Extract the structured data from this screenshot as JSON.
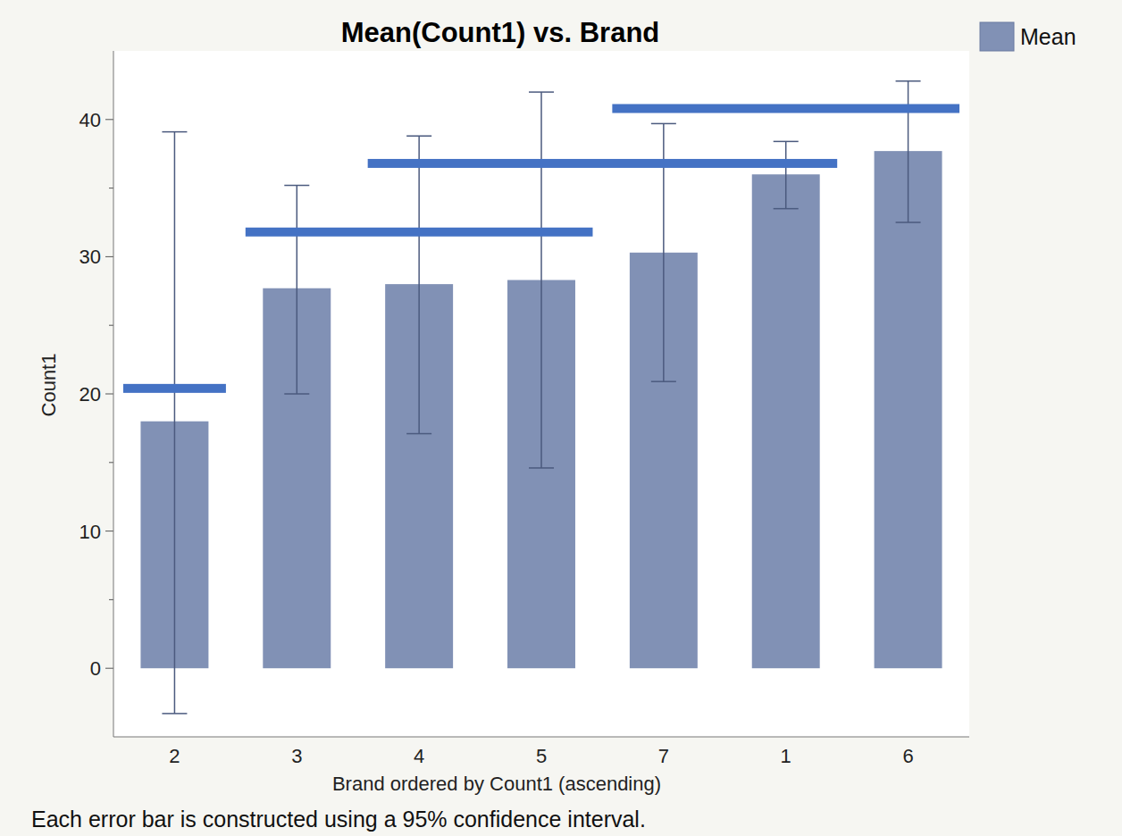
{
  "chart_data": {
    "type": "bar",
    "title": "Mean(Count1) vs. Brand",
    "x_label": "Brand ordered by Count1 (ascending)",
    "y_label": "Count1",
    "footnote": "Each error bar is constructed using a 95% confidence interval.",
    "categories": [
      "2",
      "3",
      "4",
      "5",
      "7",
      "1",
      "6"
    ],
    "series": [
      {
        "name": "Mean",
        "color": "#8191b5",
        "values": [
          18.0,
          27.7,
          28.0,
          28.3,
          30.3,
          36.0,
          37.7
        ],
        "ci_lower": [
          -3.3,
          20.0,
          17.1,
          14.6,
          20.9,
          33.5,
          32.5
        ],
        "ci_upper": [
          39.1,
          35.2,
          38.8,
          42.0,
          39.7,
          38.4,
          42.8
        ]
      }
    ],
    "groups": [
      {
        "from": "2",
        "to": "2",
        "y": 20.4
      },
      {
        "from": "3",
        "to": "5",
        "y": 31.8
      },
      {
        "from": "4",
        "to": "1",
        "y": 36.8
      },
      {
        "from": "7",
        "to": "6",
        "y": 40.8
      }
    ],
    "ylim": [
      -5,
      45
    ],
    "yticks": [
      0,
      10,
      20,
      30,
      40
    ],
    "grid": false,
    "legend": "right"
  }
}
